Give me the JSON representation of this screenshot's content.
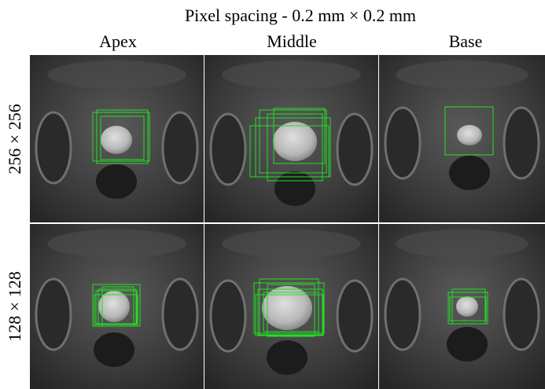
{
  "figure": {
    "title": "Pixel spacing  - 0.2 mm × 0.2 mm",
    "columns": [
      "Apex",
      "Middle",
      "Base"
    ],
    "rows": [
      "256 × 256",
      "128 × 128"
    ]
  }
}
